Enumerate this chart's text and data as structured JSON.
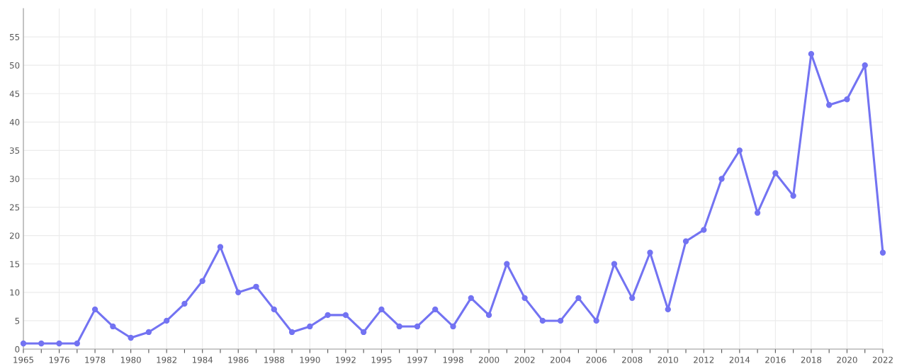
{
  "chart_data": {
    "type": "line",
    "categories": [
      "1965",
      null,
      "1976",
      null,
      "1978",
      null,
      "1980",
      null,
      "1982",
      null,
      "1984",
      null,
      "1986",
      null,
      "1988",
      null,
      "1990",
      null,
      "1992",
      null,
      "1995",
      null,
      "1997",
      null,
      "1998",
      null,
      "2000",
      null,
      "2002",
      null,
      "2004",
      null,
      "2006",
      null,
      "2008",
      null,
      "2010",
      null,
      "2012",
      null,
      "2014",
      null,
      "2016",
      null,
      "2018",
      null,
      "2020",
      null,
      "2022"
    ],
    "series": [
      {
        "color": "#7373f2",
        "values": [
          1,
          1,
          1,
          1,
          7,
          4,
          2,
          3,
          5,
          8,
          12,
          18,
          10,
          11,
          7,
          3,
          4,
          6,
          6,
          3,
          7,
          4,
          4,
          7,
          4,
          9,
          6,
          15,
          9,
          5,
          5,
          9,
          5,
          15,
          9,
          17,
          7,
          19,
          21,
          30,
          35,
          24,
          31,
          27,
          52,
          43,
          44,
          50,
          17
        ]
      }
    ],
    "ylim": [
      0,
      60
    ],
    "yticks": [
      0,
      5,
      10,
      15,
      20,
      25,
      30,
      35,
      40,
      45,
      50,
      55
    ],
    "grid": true,
    "marker": "circle",
    "line_style": "solid"
  }
}
